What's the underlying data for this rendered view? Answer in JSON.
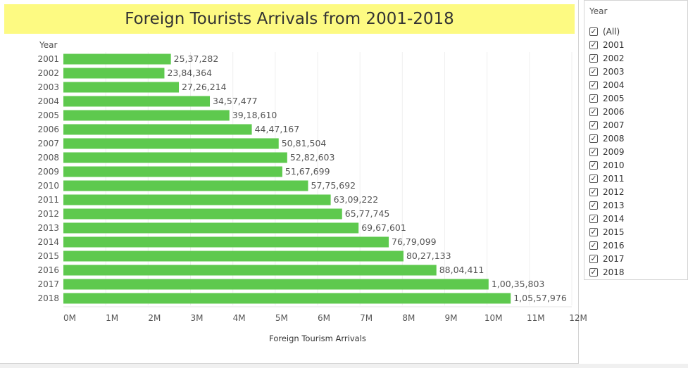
{
  "title": "Foreign Tourists Arrivals from 2001-2018",
  "filter": {
    "title": "Year",
    "check_glyph": "✓",
    "items": [
      "(All)",
      "2001",
      "2002",
      "2003",
      "2004",
      "2005",
      "2006",
      "2007",
      "2008",
      "2009",
      "2010",
      "2011",
      "2012",
      "2013",
      "2014",
      "2015",
      "2016",
      "2017",
      "2018"
    ]
  },
  "chart_data": {
    "type": "bar",
    "orientation": "horizontal",
    "title": "Foreign Tourists Arrivals from 2001-2018",
    "ylabel": "Year",
    "xlabel": "Foreign Tourism Arrivals",
    "xlim": [
      0,
      12000000
    ],
    "x_ticks": [
      "0M",
      "1M",
      "2M",
      "3M",
      "4M",
      "5M",
      "6M",
      "7M",
      "8M",
      "9M",
      "10M",
      "11M",
      "12M"
    ],
    "bar_color": "#5ec94e",
    "grid": true,
    "categories": [
      "2001",
      "2002",
      "2003",
      "2004",
      "2005",
      "2006",
      "2007",
      "2008",
      "2009",
      "2010",
      "2011",
      "2012",
      "2013",
      "2014",
      "2015",
      "2016",
      "2017",
      "2018"
    ],
    "values": [
      2537282,
      2384364,
      2726214,
      3457477,
      3918610,
      4447167,
      5081504,
      5282603,
      5167699,
      5775692,
      6309222,
      6577745,
      6967601,
      7679099,
      8027133,
      8804411,
      10035803,
      10557976
    ],
    "labels": [
      "25,37,282",
      "23,84,364",
      "27,26,214",
      "34,57,477",
      "39,18,610",
      "44,47,167",
      "50,81,504",
      "52,82,603",
      "51,67,699",
      "57,75,692",
      "63,09,222",
      "65,77,745",
      "69,67,601",
      "76,79,099",
      "80,27,133",
      "88,04,411",
      "1,00,35,803",
      "1,05,57,976"
    ]
  }
}
